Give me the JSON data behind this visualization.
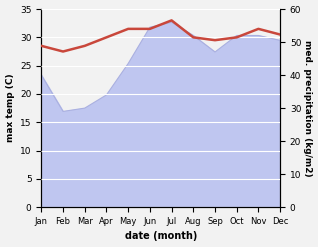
{
  "months": [
    "Jan",
    "Feb",
    "Mar",
    "Apr",
    "May",
    "Jun",
    "Jul",
    "Aug",
    "Sep",
    "Oct",
    "Nov",
    "Dec"
  ],
  "max_temp": [
    28.5,
    27.5,
    28.5,
    30.0,
    31.5,
    31.5,
    33.0,
    30.0,
    29.5,
    30.0,
    31.5,
    30.5
  ],
  "precipitation": [
    40.0,
    29.0,
    30.0,
    34.0,
    43.5,
    54.5,
    56.0,
    52.0,
    47.0,
    52.0,
    52.0,
    50.5
  ],
  "temp_color": "#c9473b",
  "precip_fill_color": "#bfc6f0",
  "precip_line_color": "#aab0e0",
  "temp_ylim": [
    0,
    35
  ],
  "precip_ylim": [
    0,
    60
  ],
  "temp_yticks": [
    0,
    5,
    10,
    15,
    20,
    25,
    30,
    35
  ],
  "precip_yticks": [
    0,
    10,
    20,
    30,
    40,
    50,
    60
  ],
  "xlabel": "date (month)",
  "ylabel_left": "max temp (C)",
  "ylabel_right": "med. precipitation (kg/m2)",
  "bg_color": "#f2f2f2",
  "grid_color": "white"
}
